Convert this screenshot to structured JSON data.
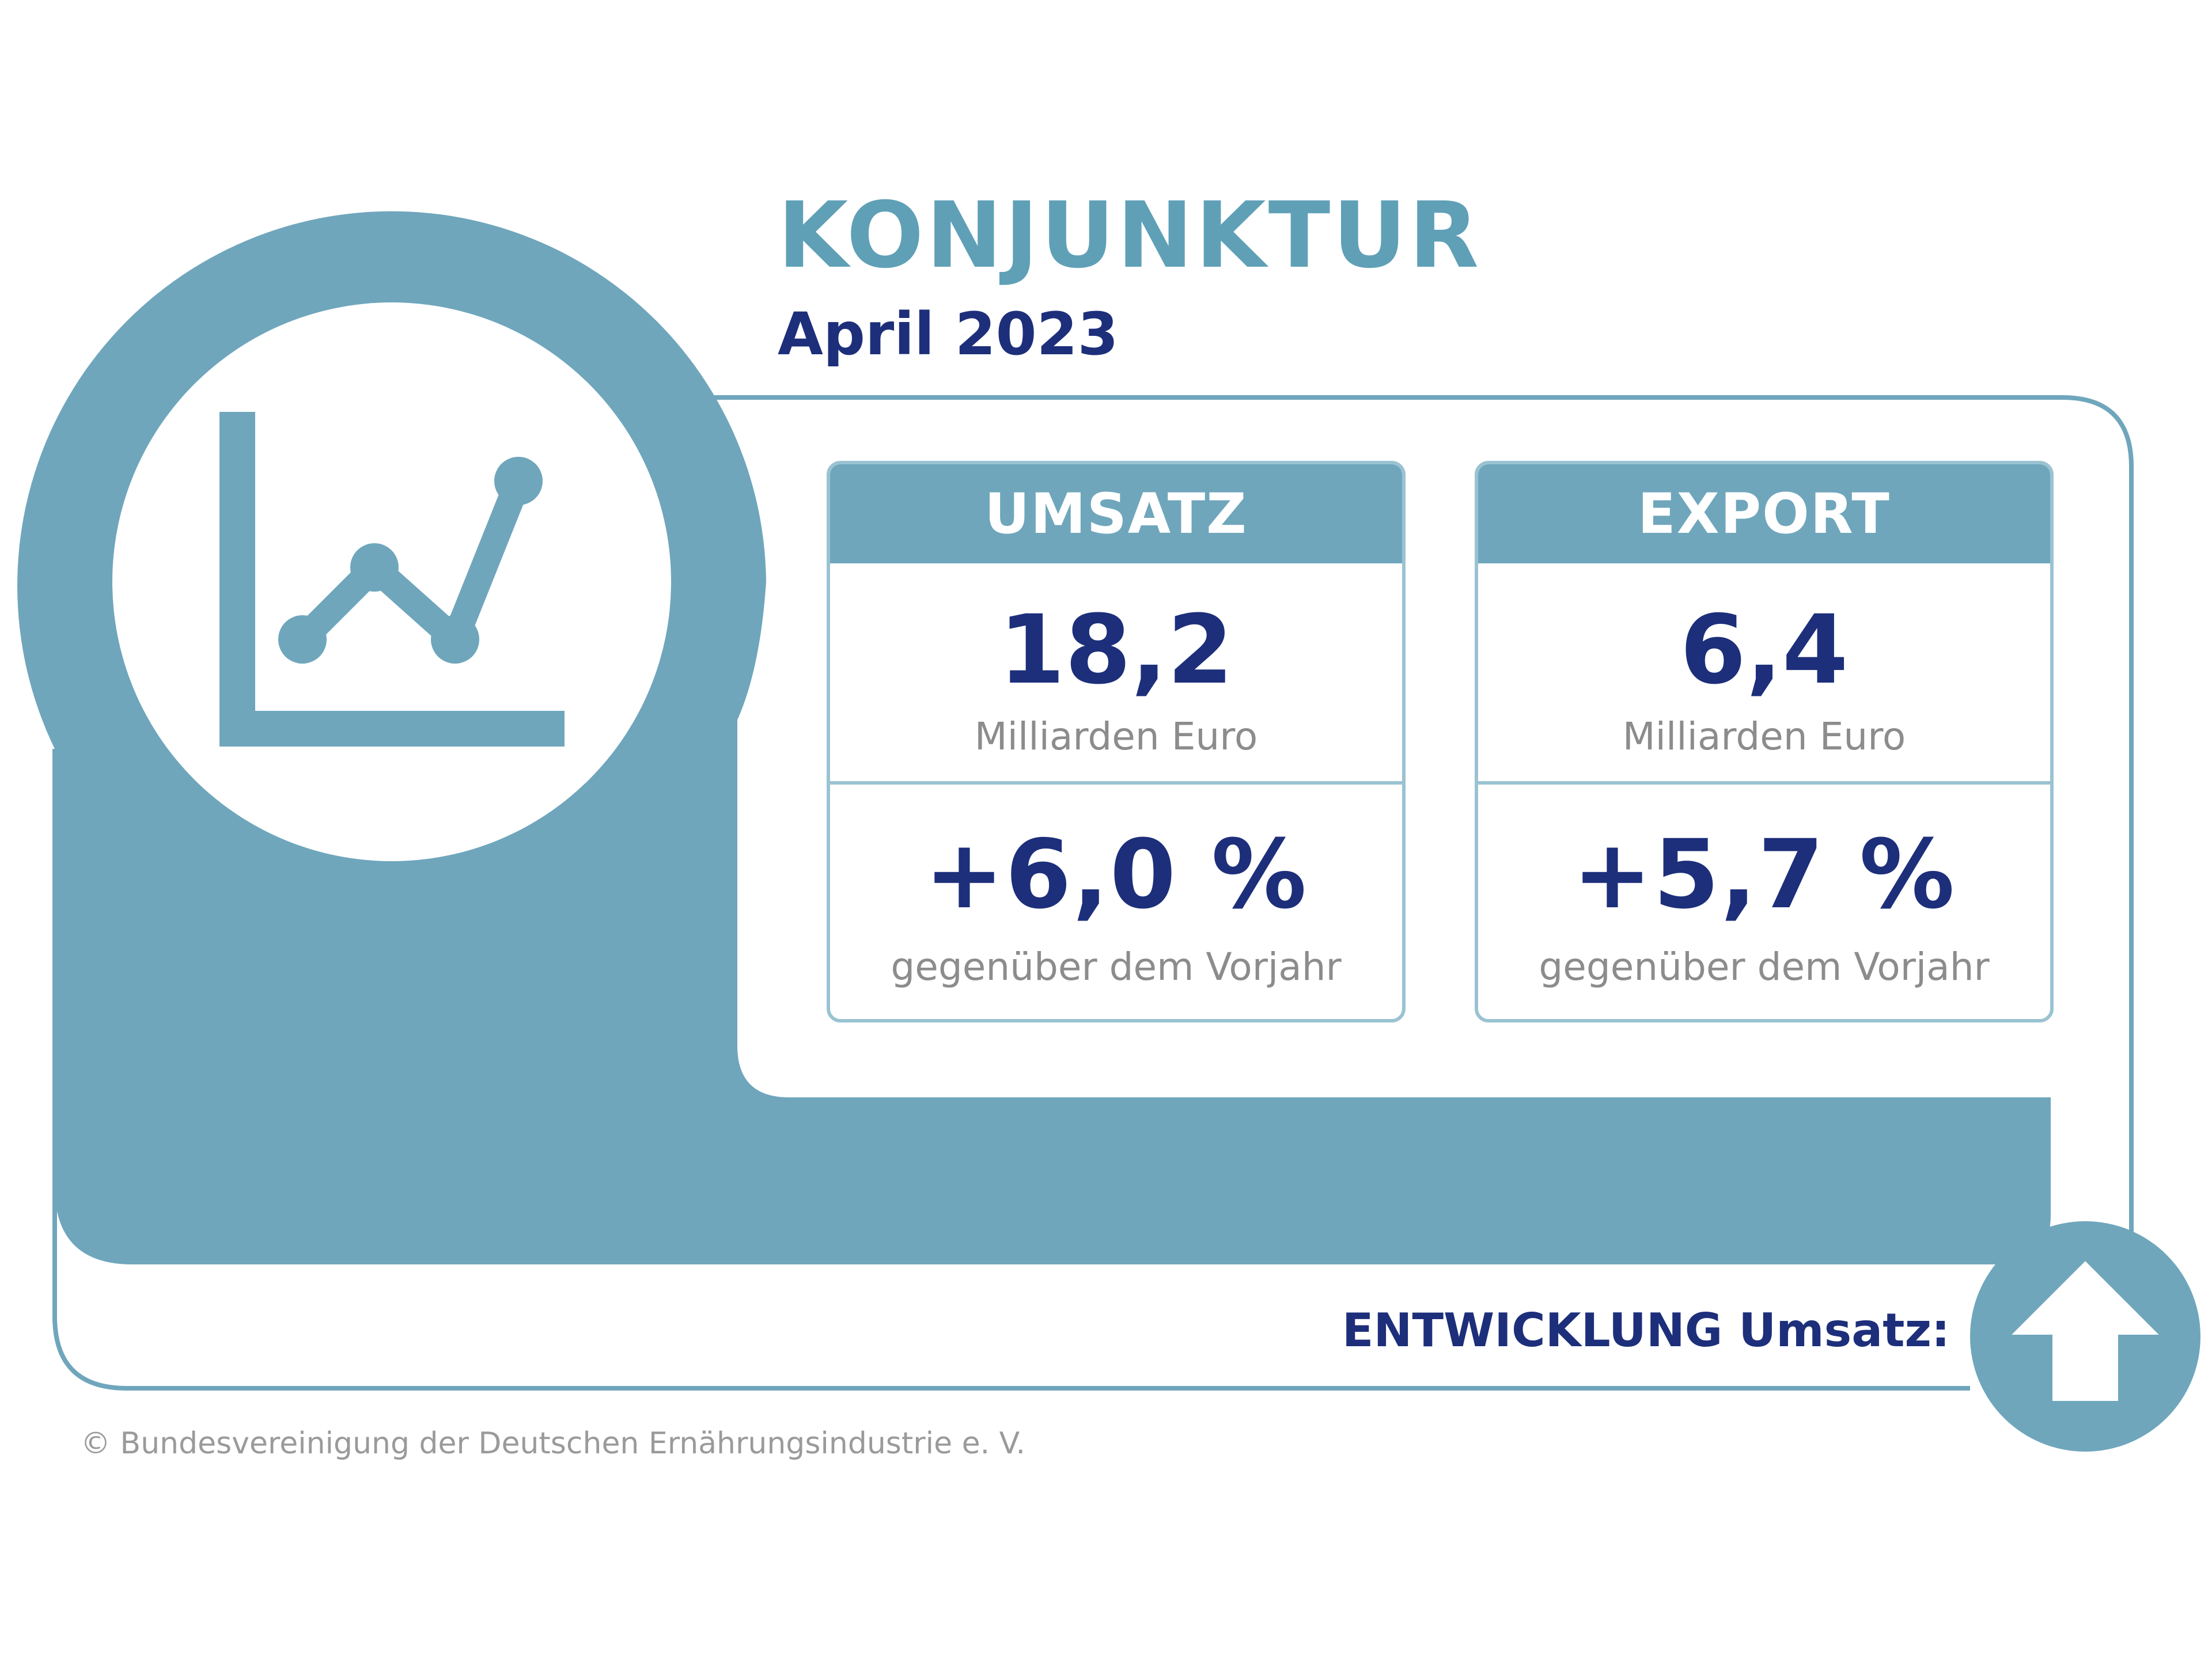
{
  "header": {
    "title": "KONJUNKTUR",
    "subtitle": "April 2023"
  },
  "cards": [
    {
      "heading": "UMSATZ",
      "value": "18,2",
      "unit": "Milliarden Euro",
      "change": "+6,0 %",
      "change_label": "gegenüber dem Vorjahr"
    },
    {
      "heading": "EXPORT",
      "value": "6,4",
      "unit": "Milliarden Euro",
      "change": "+5,7 %",
      "change_label": "gegenüber dem Vorjahr"
    }
  ],
  "footer": {
    "development_label": "ENTWICKLUNG Umsatz:",
    "development_icon": "arrow-up-icon",
    "copyright": "© Bundesvereinigung der Deutschen Ernährungsindustrie e. V."
  },
  "icons": {
    "main_icon": "line-chart-icon"
  },
  "colors": {
    "accent_blue": "#6fa6bc",
    "light_border": "#9ac3d2",
    "dark_navy": "#1d2f7a",
    "title_blue": "#5fa0b7",
    "gray_text": "#8c8c8c"
  }
}
